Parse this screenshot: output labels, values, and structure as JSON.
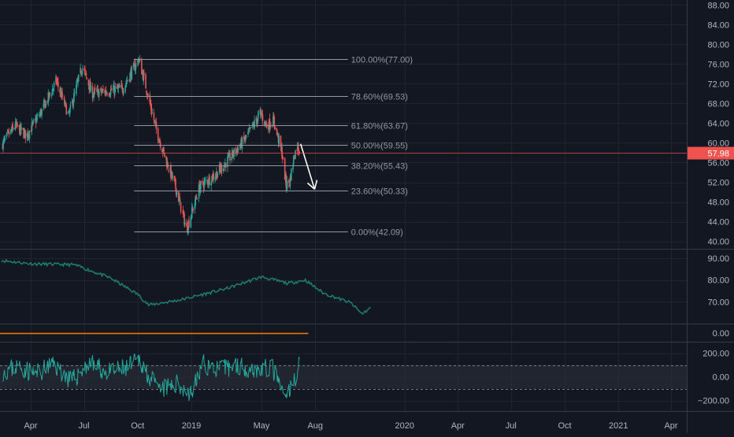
{
  "theme": {
    "background": "#131722",
    "grid": "#1f2433",
    "pane_border": "#363a45",
    "axis_text": "#b2b5be",
    "fib_line": "#9598a1",
    "up_color": "#26a69a",
    "down_color": "#ef5350",
    "indicator_color": "#1f7a6e",
    "volume_line": "#f57c00",
    "band_fill": "#2a2e39",
    "arrow": "#ffffff"
  },
  "chart_data": [
    {
      "type": "candlestick",
      "pane": "price",
      "title": "",
      "x_labels": [
        "Apr",
        "Jul",
        "Oct",
        "2019",
        "May",
        "Aug",
        "2020",
        "Apr",
        "Jul",
        "Oct",
        "2021",
        "Apr"
      ],
      "y_ticks": [
        "88.00",
        "84.00",
        "80.00",
        "76.00",
        "72.00",
        "68.00",
        "64.00",
        "60.00",
        "56.00",
        "52.00",
        "48.00",
        "44.00",
        "40.00"
      ],
      "ylim": [
        38.5,
        89
      ],
      "last_price": "57.98",
      "last_price_color": "#ef5350",
      "close_anchors": [
        {
          "date": "2018-02-10",
          "value": 59.5
        },
        {
          "date": "2018-03-05",
          "value": 63.5
        },
        {
          "date": "2018-03-25",
          "value": 61.5
        },
        {
          "date": "2018-04-20",
          "value": 66.5
        },
        {
          "date": "2018-05-15",
          "value": 72.5
        },
        {
          "date": "2018-06-05",
          "value": 65.5
        },
        {
          "date": "2018-06-28",
          "value": 75.5
        },
        {
          "date": "2018-07-15",
          "value": 70.0
        },
        {
          "date": "2018-08-10",
          "value": 70.5
        },
        {
          "date": "2018-09-05",
          "value": 71.0
        },
        {
          "date": "2018-10-03",
          "value": 77.0
        },
        {
          "date": "2018-10-15",
          "value": 71.5
        },
        {
          "date": "2018-11-01",
          "value": 63.0
        },
        {
          "date": "2018-11-20",
          "value": 56.0
        },
        {
          "date": "2018-12-05",
          "value": 51.0
        },
        {
          "date": "2018-12-24",
          "value": 42.5
        },
        {
          "date": "2019-01-15",
          "value": 51.0
        },
        {
          "date": "2019-02-15",
          "value": 54.0
        },
        {
          "date": "2019-03-15",
          "value": 58.0
        },
        {
          "date": "2019-04-05",
          "value": 61.0
        },
        {
          "date": "2019-04-29",
          "value": 66.0
        },
        {
          "date": "2019-05-10",
          "value": 63.5
        },
        {
          "date": "2019-05-22",
          "value": 64.5
        },
        {
          "date": "2019-06-05",
          "value": 58.0
        },
        {
          "date": "2019-06-12",
          "value": 51.5
        },
        {
          "date": "2019-06-18",
          "value": 52.0
        },
        {
          "date": "2019-06-26",
          "value": 57.5
        },
        {
          "date": "2019-07-02",
          "value": 59.5
        },
        {
          "date": "2019-07-05",
          "value": 57.98
        }
      ],
      "fibonacci": {
        "start_date": "2018-09-25",
        "end_date": "2019-09-26",
        "levels": [
          {
            "label": "100.00%(77.00)",
            "value": 77.0
          },
          {
            "label": "78.60%(69.53)",
            "value": 69.53
          },
          {
            "label": "61.80%(63.67)",
            "value": 63.67
          },
          {
            "label": "50.00%(59.55)",
            "value": 59.55
          },
          {
            "label": "38.20%(55.43)",
            "value": 55.43
          },
          {
            "label": "23.60%(50.33)",
            "value": 50.33
          },
          {
            "label": "0.00%(42.09)",
            "value": 42.09
          }
        ]
      },
      "arrow": {
        "from": {
          "date": "2019-07-07",
          "value": 59.8
        },
        "to": {
          "date": "2019-07-31",
          "value": 50.6
        }
      }
    },
    {
      "type": "line",
      "pane": "indicator",
      "y_ticks": [
        "90.00",
        "80.00",
        "70.00"
      ],
      "ylim": [
        60,
        94
      ],
      "anchors": [
        {
          "date": "2018-02-10",
          "value": 89.0
        },
        {
          "date": "2018-04-01",
          "value": 87.5
        },
        {
          "date": "2018-06-15",
          "value": 87.0
        },
        {
          "date": "2018-08-15",
          "value": 81.0
        },
        {
          "date": "2018-10-01",
          "value": 73.5
        },
        {
          "date": "2018-10-20",
          "value": 68.5
        },
        {
          "date": "2018-12-15",
          "value": 71.0
        },
        {
          "date": "2019-03-01",
          "value": 76.0
        },
        {
          "date": "2019-05-01",
          "value": 81.5
        },
        {
          "date": "2019-06-15",
          "value": 78.5
        },
        {
          "date": "2019-07-15",
          "value": 80.0
        },
        {
          "date": "2019-08-15",
          "value": 74.0
        },
        {
          "date": "2019-10-01",
          "value": 69.5
        },
        {
          "date": "2019-10-20",
          "value": 64.5
        },
        {
          "date": "2019-11-05",
          "value": 67.5
        }
      ]
    },
    {
      "type": "line",
      "pane": "volume",
      "y_ticks": [
        "0.00"
      ],
      "ylim": [
        -1,
        1
      ],
      "level": 0,
      "start_date": "2018-02-01",
      "end_date": "2019-07-20"
    },
    {
      "type": "line",
      "pane": "oscillator",
      "y_ticks": [
        "200.00",
        "0.00",
        "−200.00"
      ],
      "ylim": [
        -290,
        290
      ],
      "band": [
        -100,
        100
      ],
      "anchors": [
        {
          "date": "2018-02-10",
          "value": 40
        },
        {
          "date": "2018-03-10",
          "value": 90
        },
        {
          "date": "2018-04-10",
          "value": 20
        },
        {
          "date": "2018-05-10",
          "value": 110
        },
        {
          "date": "2018-06-10",
          "value": -40
        },
        {
          "date": "2018-07-10",
          "value": 120
        },
        {
          "date": "2018-08-10",
          "value": 30
        },
        {
          "date": "2018-09-10",
          "value": 70
        },
        {
          "date": "2018-10-05",
          "value": 140
        },
        {
          "date": "2018-11-05",
          "value": -120
        },
        {
          "date": "2018-12-10",
          "value": -60
        },
        {
          "date": "2019-01-01",
          "value": -150
        },
        {
          "date": "2019-01-20",
          "value": 110
        },
        {
          "date": "2019-02-20",
          "value": 60
        },
        {
          "date": "2019-03-20",
          "value": 100
        },
        {
          "date": "2019-04-20",
          "value": 60
        },
        {
          "date": "2019-05-20",
          "value": 70
        },
        {
          "date": "2019-06-10",
          "value": -190
        },
        {
          "date": "2019-06-25",
          "value": -60
        },
        {
          "date": "2019-07-05",
          "value": 140
        }
      ]
    }
  ],
  "time_axis": {
    "labels": [
      {
        "text": "Apr",
        "date": "2018-04-01"
      },
      {
        "text": "Jul",
        "date": "2018-07-01"
      },
      {
        "text": "Oct",
        "date": "2018-10-01"
      },
      {
        "text": "2019",
        "date": "2019-01-01"
      },
      {
        "text": "May",
        "date": "2019-05-01"
      },
      {
        "text": "Aug",
        "date": "2019-08-01"
      },
      {
        "text": "2020",
        "date": "2020-01-01"
      },
      {
        "text": "Apr",
        "date": "2020-04-01"
      },
      {
        "text": "Jul",
        "date": "2020-07-01"
      },
      {
        "text": "Oct",
        "date": "2020-10-01"
      },
      {
        "text": "2021",
        "date": "2021-01-01"
      },
      {
        "text": "Apr",
        "date": "2021-04-01"
      }
    ]
  }
}
